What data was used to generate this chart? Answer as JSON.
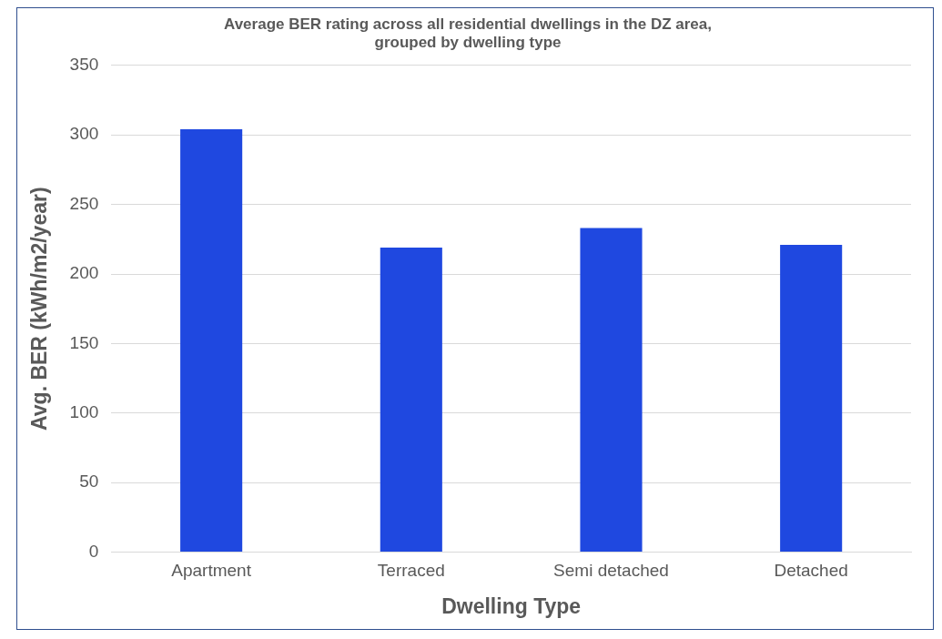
{
  "chart_data": {
    "type": "bar",
    "title": "Average BER rating across all residential dwellings in the DZ area,\ngrouped by dwelling type",
    "xlabel": "Dwelling Type",
    "ylabel": "Avg. BER (kWh/m2/year)",
    "categories": [
      "Apartment",
      "Terraced",
      "Semi detached",
      "Detached"
    ],
    "values": [
      304,
      219,
      233,
      221
    ],
    "color": "#1f48e0",
    "ylim": [
      0,
      350
    ],
    "yticks": [
      0,
      50,
      100,
      150,
      200,
      250,
      300,
      350
    ],
    "grid": "y",
    "legend": false
  }
}
